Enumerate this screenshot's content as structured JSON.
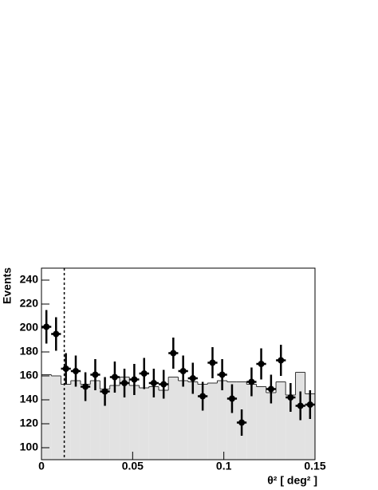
{
  "chart_data": {
    "type": "scatter",
    "xlabel": "θ² [ deg² ]",
    "ylabel": "Events",
    "x": [
      0.0027,
      0.008,
      0.0134,
      0.0188,
      0.0241,
      0.0295,
      0.0348,
      0.0402,
      0.0455,
      0.0509,
      0.0563,
      0.0616,
      0.067,
      0.0723,
      0.0777,
      0.083,
      0.0884,
      0.0938,
      0.0991,
      0.1045,
      0.1098,
      0.1152,
      0.1205,
      0.1259,
      0.1313,
      0.1366,
      0.142,
      0.1473
    ],
    "values": [
      201,
      195,
      166,
      164,
      151,
      161,
      147,
      159,
      154,
      157,
      162,
      154,
      153,
      179,
      164,
      158,
      143,
      171,
      161,
      141,
      121,
      155,
      170,
      149,
      173,
      142,
      135,
      136
    ],
    "errors": [
      14,
      14,
      13,
      13,
      12,
      13,
      12,
      13,
      12,
      13,
      13,
      12,
      12,
      13,
      13,
      13,
      12,
      13,
      13,
      12,
      11,
      12,
      13,
      12,
      13,
      12,
      12,
      12
    ],
    "color": "#000000",
    "background": {
      "type": "histogram",
      "color": "#e2e2e2",
      "bins": [
        0,
        0.0054,
        0.0107,
        0.0161,
        0.0214,
        0.0268,
        0.0321,
        0.0375,
        0.0429,
        0.0482,
        0.0536,
        0.0589,
        0.0643,
        0.0696,
        0.075,
        0.0804,
        0.0857,
        0.0911,
        0.0964,
        0.1018,
        0.1071,
        0.1125,
        0.1179,
        0.1232,
        0.1286,
        0.1339,
        0.1393,
        0.1446,
        0.15
      ],
      "values": [
        161,
        160,
        153,
        156,
        153,
        156,
        149,
        152,
        159,
        152,
        150,
        151,
        148,
        159,
        156,
        155,
        153,
        154,
        156,
        155,
        155,
        153,
        151,
        146,
        155,
        144,
        163,
        145
      ]
    },
    "cut": 0.0125,
    "xlim": [
      0,
      0.15
    ],
    "xticks": [
      0,
      0.05,
      0.1,
      0.15
    ],
    "ylim": [
      90,
      250
    ],
    "yticks": [
      100,
      120,
      140,
      160,
      180,
      200,
      220,
      240
    ]
  }
}
